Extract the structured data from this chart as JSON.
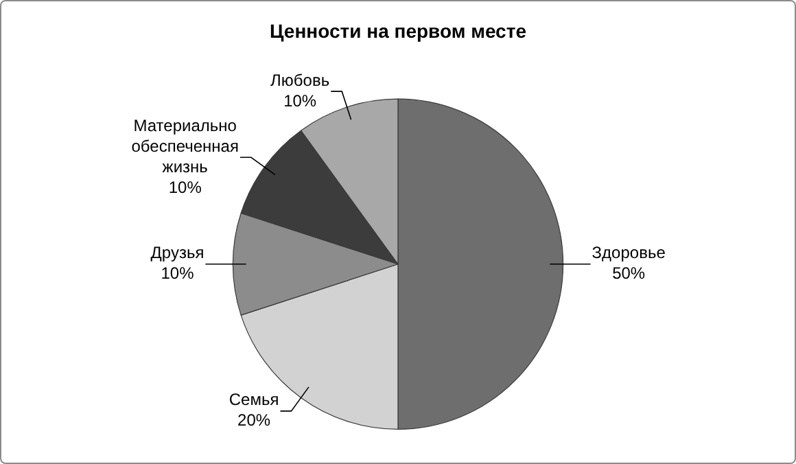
{
  "chart_data": {
    "type": "pie",
    "title": "Ценности на первом месте",
    "categories": [
      "Здоровье",
      "Семья",
      "Друзья",
      "Материально обеспеченная жизнь",
      "Любовь"
    ],
    "values": [
      50,
      20,
      10,
      10,
      10
    ],
    "colors": [
      "#6e6e6e",
      "#d2d2d2",
      "#8c8c8c",
      "#3c3c3c",
      "#a8a8a8"
    ],
    "value_labels": [
      "50%",
      "20%",
      "10%",
      "10%",
      "10%"
    ],
    "legend": false
  }
}
